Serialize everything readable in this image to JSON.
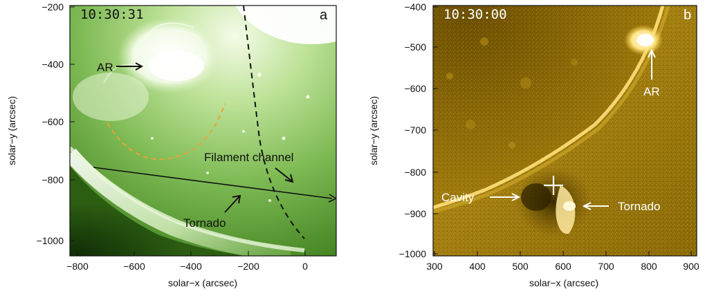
{
  "panel_a": {
    "label": "a",
    "timestamp": "10:30:31",
    "x_axis_label": "solar−x (arcsec)",
    "y_axis_label": "solar−y (arcsec)",
    "x_ticks": [
      "−800",
      "−600",
      "−400",
      "−200",
      "0"
    ],
    "y_ticks": [
      "−200",
      "−400",
      "−600",
      "−800",
      "−1000"
    ],
    "annotations": {
      "ar": "AR",
      "filament_channel": "Filament  channel",
      "tornado": "Tornado"
    },
    "colors": {
      "base": "#2c6a12",
      "bright": "#e6f5c8",
      "limb_dash": "#e8a33a"
    }
  },
  "panel_b": {
    "label": "b",
    "timestamp": "10:30:00",
    "x_axis_label": "solar−x (arcsec)",
    "y_axis_label": "solar−y (arcsec)",
    "x_ticks": [
      "300",
      "400",
      "500",
      "600",
      "700",
      "800",
      "900"
    ],
    "y_ticks": [
      "−400",
      "−500",
      "−600",
      "−700",
      "−800",
      "−900",
      "−1000"
    ],
    "annotations": {
      "ar": "AR",
      "cavity": "Cavity",
      "tornado": "Tornado"
    },
    "colors": {
      "base": "#7a5a00",
      "bright": "#ffe9a0"
    }
  }
}
